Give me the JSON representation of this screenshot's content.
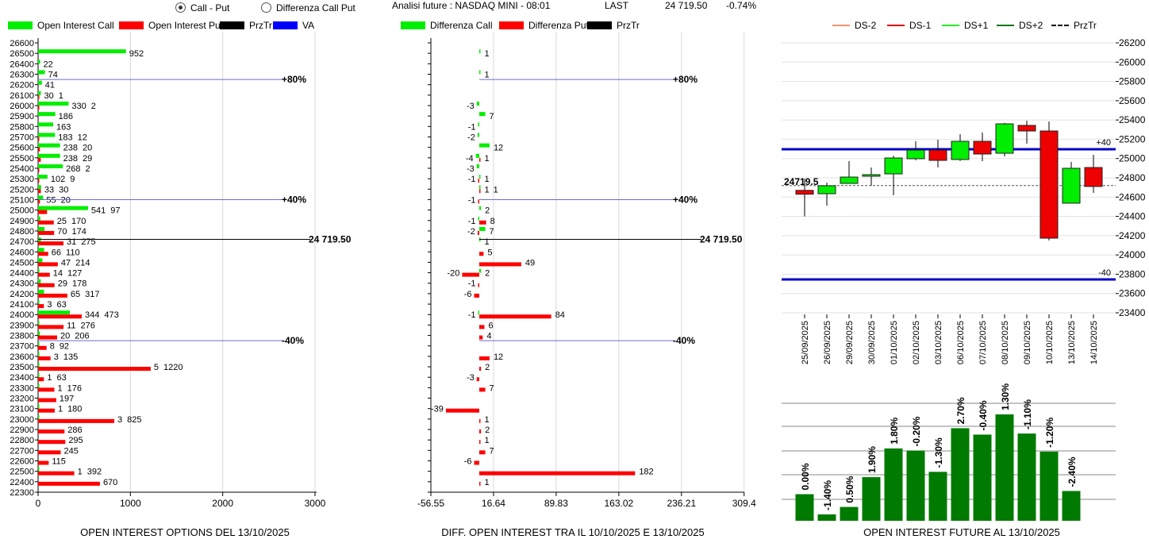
{
  "header": {
    "mode_options": [
      {
        "label": "Call - Put",
        "selected": true
      },
      {
        "label": "Differenza Call Put",
        "selected": false
      }
    ],
    "title": "Analisi future : NASDAQ MINI - 08:01",
    "last_label": "LAST",
    "last_value": "24 719.50",
    "change": "-0.74%"
  },
  "legends": {
    "options": [
      {
        "label": "Open Interest Call",
        "color": "#00ee00"
      },
      {
        "label": "Open Interest Put",
        "color": "#ff0000"
      },
      {
        "label": "PrzTr",
        "color": "#000000"
      },
      {
        "label": "VA",
        "color": "#0000ff"
      }
    ],
    "diff": [
      {
        "label": "Differenza Call",
        "color": "#00ee00"
      },
      {
        "label": "Differenza Put",
        "color": "#ff0000"
      },
      {
        "label": "PrzTr",
        "color": "#000000"
      }
    ],
    "future": [
      {
        "label": "DS-2",
        "color": "#f4946c",
        "style": "solid"
      },
      {
        "label": "DS-1",
        "color": "#e00000",
        "style": "solid"
      },
      {
        "label": "DS+1",
        "color": "#22ee22",
        "style": "solid"
      },
      {
        "label": "DS+2",
        "color": "#117711",
        "style": "solid"
      },
      {
        "label": "PrzTr",
        "color": "#000000",
        "style": "dashed"
      }
    ]
  },
  "chart_data": [
    {
      "type": "bar",
      "orientation": "horizontal",
      "title": "OPEN INTEREST OPTIONS DEL 13/10/2025",
      "categories": [
        26600,
        26500,
        26400,
        26300,
        26200,
        26100,
        26000,
        25900,
        25800,
        25700,
        25600,
        25500,
        25400,
        25300,
        25200,
        25100,
        25000,
        24900,
        24800,
        24700,
        24600,
        24500,
        24400,
        24300,
        24200,
        24100,
        24000,
        23900,
        23800,
        23700,
        23600,
        23500,
        23400,
        23300,
        23200,
        23100,
        23000,
        22900,
        22800,
        22700,
        22600,
        22500,
        22400,
        22300
      ],
      "series": [
        {
          "name": "Open Interest Call",
          "color": "#00ee00",
          "values": [
            0,
            952,
            22,
            74,
            41,
            30,
            330,
            186,
            163,
            183,
            238,
            238,
            268,
            102,
            33,
            55,
            541,
            25,
            70,
            31,
            66,
            47,
            14,
            29,
            65,
            3,
            344,
            11,
            20,
            8,
            3,
            5,
            1,
            1,
            0,
            1,
            3,
            0,
            0,
            0,
            0,
            1,
            0,
            0
          ]
        },
        {
          "name": "Open Interest Put",
          "color": "#ff0000",
          "values": [
            0,
            0,
            0,
            0,
            0,
            1,
            2,
            0,
            0,
            12,
            20,
            29,
            2,
            9,
            30,
            20,
            97,
            170,
            174,
            275,
            110,
            214,
            127,
            178,
            317,
            63,
            473,
            276,
            206,
            92,
            135,
            1220,
            63,
            176,
            197,
            180,
            825,
            286,
            295,
            245,
            115,
            392,
            670,
            0
          ]
        }
      ],
      "xlim": [
        0,
        3000
      ],
      "xticks": [
        "0",
        "1000",
        "2000",
        "3000"
      ],
      "reference_lines": [
        {
          "label": "+80%",
          "strike": 26250,
          "color": "#6b6bd6"
        },
        {
          "label": "+40%",
          "strike": 25100,
          "color": "#6b6bd6"
        },
        {
          "label": "-40%",
          "strike": 23750,
          "color": "#6b6bd6"
        },
        {
          "label": "24 719.50",
          "strike": 24719.5,
          "color": "#000000"
        }
      ],
      "grid": "vertical"
    },
    {
      "type": "bar",
      "orientation": "horizontal",
      "title": "DIFF. OPEN INTEREST TRA IL 10/10/2025 E 13/10/2025",
      "categories": [
        26600,
        26500,
        26400,
        26300,
        26200,
        26100,
        26000,
        25900,
        25800,
        25700,
        25600,
        25500,
        25400,
        25300,
        25200,
        25100,
        25000,
        24900,
        24800,
        24700,
        24600,
        24500,
        24400,
        24300,
        24200,
        24100,
        24000,
        23900,
        23800,
        23700,
        23600,
        23500,
        23400,
        23300,
        23200,
        23100,
        23000,
        22900,
        22800,
        22700,
        22600,
        22500,
        22400,
        22300
      ],
      "series": [
        {
          "name": "Differenza Call",
          "color": "#00ee00",
          "values": [
            null,
            1,
            null,
            1,
            null,
            null,
            -3,
            7,
            -1,
            -2,
            12,
            -4,
            -3,
            1,
            1,
            null,
            2,
            -1,
            7,
            1,
            null,
            null,
            2,
            null,
            null,
            null,
            -1,
            null,
            null,
            null,
            null,
            null,
            null,
            null,
            null,
            null,
            null,
            null,
            null,
            null,
            null,
            null,
            null,
            null
          ]
        },
        {
          "name": "Differenza Put",
          "color": "#ff0000",
          "values": [
            null,
            null,
            null,
            null,
            null,
            null,
            null,
            null,
            null,
            null,
            null,
            1,
            null,
            -1,
            1,
            -1,
            null,
            8,
            -2,
            null,
            5,
            49,
            -20,
            -1,
            -6,
            null,
            84,
            6,
            4,
            null,
            12,
            2,
            -3,
            7,
            null,
            -39,
            1,
            2,
            1,
            7,
            -6,
            182,
            1,
            null
          ]
        }
      ],
      "xlim": [
        -56.55,
        309.4
      ],
      "xticks": [
        "-56.55",
        "16.64",
        "89.83",
        "163.02",
        "236.21",
        "309.4"
      ],
      "xtick_values": [
        -56.55,
        16.64,
        89.83,
        163.02,
        236.21,
        309.4
      ],
      "reference_lines": [
        {
          "label": "+80%",
          "strike": 26250,
          "color": "#6b6bd6"
        },
        {
          "label": "+40%",
          "strike": 25100,
          "color": "#6b6bd6"
        },
        {
          "label": "-40%",
          "strike": 23750,
          "color": "#6b6bd6"
        },
        {
          "label": "24 719.50",
          "strike": 24719.5,
          "color": "#000000"
        }
      ],
      "grid": "vertical"
    },
    {
      "type": "candlestick",
      "dates": [
        "25/09/2025",
        "26/09/2025",
        "29/09/2025",
        "30/09/2025",
        "01/10/2025",
        "02/10/2025",
        "03/10/2025",
        "06/10/2025",
        "07/10/2025",
        "08/10/2025",
        "09/10/2025",
        "10/10/2025",
        "13/10/2025",
        "14/10/2025"
      ],
      "open": [
        24670,
        24635,
        24742,
        24817,
        24841,
        24998,
        25088,
        24990,
        25179,
        25055,
        25344,
        25286,
        24537,
        24907
      ],
      "high": [
        24790,
        24750,
        24973,
        24907,
        25030,
        25179,
        25195,
        25253,
        25270,
        25370,
        25393,
        25385,
        24965,
        25039
      ],
      "low": [
        24400,
        24512,
        24740,
        24718,
        24619,
        24981,
        24907,
        24975,
        24973,
        25022,
        25154,
        24150,
        24537,
        24644
      ],
      "close": [
        24630,
        24718,
        24808,
        24833,
        25006,
        25088,
        24981,
        25179,
        25047,
        25360,
        25286,
        24174,
        24899,
        24710
      ],
      "ylim": [
        23400,
        26200
      ],
      "yticks": [
        "26200",
        "26000",
        "25800",
        "25600",
        "25400",
        "25200",
        "25000",
        "24800",
        "24600",
        "24400",
        "24200",
        "24000",
        "23800",
        "23600",
        "23400"
      ],
      "reference_lines": [
        {
          "label": "+40",
          "value": 25096,
          "color": "#0000cc"
        },
        {
          "label": "-40",
          "value": 23746,
          "color": "#0000cc"
        }
      ],
      "przTr": {
        "label": "24719.5",
        "value": 24719.5
      },
      "grid": "horizontal"
    },
    {
      "type": "bar",
      "title": "OPEN INTEREST FUTURE AL 13/10/2025",
      "labels": [
        "0.00%",
        "-1.40%",
        "0.50%",
        "1.90%",
        "1.80%",
        "-0.20%",
        "-1.30%",
        "2.70%",
        "-0.40%",
        "1.30%",
        "-1.10%",
        "-1.20%",
        "-2.40%"
      ],
      "values_relative": [
        25,
        6,
        13,
        41,
        68,
        66,
        46,
        87,
        81,
        100,
        82,
        65,
        28
      ],
      "color": "#007a00",
      "grid": "horizontal"
    }
  ]
}
